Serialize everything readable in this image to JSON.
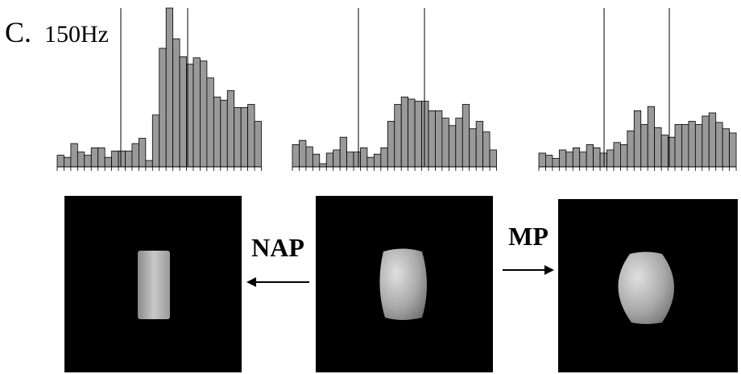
{
  "panel_label": "C.",
  "scale_label": "150Hz",
  "labels": {
    "left_arrow": "NAP",
    "right_arrow": "MP"
  },
  "chart_data": [
    {
      "type": "bar",
      "color": "#999999",
      "ylim": [
        0,
        150
      ],
      "values": [
        11,
        9,
        22,
        14,
        11,
        18,
        18,
        9,
        15,
        15,
        15,
        22,
        27,
        6,
        49,
        112,
        150,
        121,
        104,
        97,
        103,
        100,
        84,
        66,
        63,
        72,
        56,
        56,
        59,
        43
      ]
    },
    {
      "type": "bar",
      "color": "#999999",
      "ylim": [
        0,
        150
      ],
      "values": [
        21,
        25,
        19,
        12,
        3,
        13,
        16,
        28,
        14,
        14,
        18,
        9,
        12,
        18,
        43,
        59,
        66,
        64,
        62,
        62,
        53,
        53,
        46,
        39,
        46,
        59,
        36,
        43,
        33,
        16
      ]
    },
    {
      "type": "bar",
      "color": "#999999",
      "ylim": [
        0,
        150
      ],
      "values": [
        13,
        11,
        8,
        16,
        14,
        18,
        14,
        21,
        18,
        13,
        16,
        23,
        21,
        34,
        53,
        40,
        57,
        37,
        30,
        28,
        40,
        40,
        43,
        40,
        48,
        51,
        42,
        36,
        32
      ]
    }
  ]
}
